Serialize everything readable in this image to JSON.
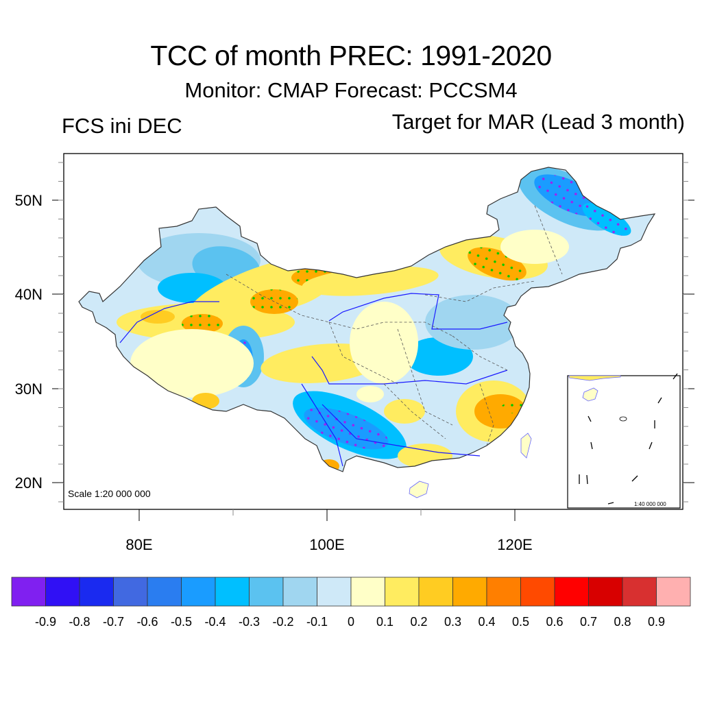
{
  "header": {
    "title": "TCC of month PREC: 1991-2020",
    "subtitle": "Monitor: CMAP   Forecast: PCCSM4",
    "left_label": "FCS ini DEC",
    "right_label": "Target for MAR (Lead 3 month)"
  },
  "map": {
    "region": "China",
    "lat_ticks": [
      "50N",
      "40N",
      "30N",
      "20N"
    ],
    "lon_ticks": [
      "80E",
      "100E",
      "120E"
    ],
    "scale_label": "Scale 1:20 000 000",
    "inset_scale_label": "1:40 000 000",
    "stipple_positive_color": "#00c800",
    "stipple_negative_color": "#a020f0",
    "boundary_color": "#333333",
    "river_color": "#1a1aff"
  },
  "chart_data": {
    "type": "heatmap",
    "title": "TCC of month PREC: 1991-2020",
    "subtitle": "Monitor: CMAP   Forecast: PCCSM4",
    "annotations": [
      "FCS ini DEC",
      "Target for MAR (Lead 3 month)",
      "Scale 1:20 000 000",
      "1:40 000 000"
    ],
    "xlabel": "",
    "ylabel": "",
    "x_ticks": [
      "80E",
      "100E",
      "120E"
    ],
    "y_ticks": [
      "50N",
      "40N",
      "30N",
      "20N"
    ],
    "xlim": [
      72,
      138
    ],
    "ylim": [
      17,
      55
    ],
    "colorbar": {
      "labels": [
        "-0.9",
        "-0.8",
        "-0.7",
        "-0.6",
        "-0.5",
        "-0.4",
        "-0.3",
        "-0.2",
        "-0.1",
        "0",
        "0.1",
        "0.2",
        "0.3",
        "0.4",
        "0.5",
        "0.6",
        "0.7",
        "0.8",
        "0.9"
      ],
      "colors": [
        "#8020f0",
        "#3010f5",
        "#1a2af0",
        "#4169e1",
        "#2a7df0",
        "#1a9cff",
        "#00bfff",
        "#5bc2f0",
        "#a0d6f0",
        "#cfe9f8",
        "#ffffc8",
        "#ffec60",
        "#ffcc22",
        "#ffaa00",
        "#ff7f00",
        "#ff4a00",
        "#ff0000",
        "#d80000",
        "#d83030",
        "#ffb0b0"
      ],
      "placement": "bottom"
    },
    "regions": [
      {
        "name": "Northeast (Heilongjiang north)",
        "value": -0.4,
        "significant": true
      },
      {
        "name": "Inner Mongolia east / Liaoning west",
        "value": 0.35,
        "significant": true
      },
      {
        "name": "Inner Mongolia central (~100E,42N)",
        "value": 0.35,
        "significant": true
      },
      {
        "name": "Hexi corridor (~95E,39N)",
        "value": 0.35,
        "significant": true
      },
      {
        "name": "South Xinjiang (~87E,37N)",
        "value": 0.35,
        "significant": true
      },
      {
        "name": "North Xinjiang (~85E,42N)",
        "value": -0.4,
        "significant": true
      },
      {
        "name": "Tibet central (~91E,32N)",
        "value": -0.4,
        "significant": true
      },
      {
        "name": "Yunnan / Guangxi",
        "value": -0.4,
        "significant": true
      },
      {
        "name": "Zhejiang",
        "value": 0.35,
        "significant": true
      },
      {
        "name": "North China Plain",
        "value": -0.2,
        "significant": false
      },
      {
        "name": "Sichuan basin / Shaanxi",
        "value": 0.15,
        "significant": false
      },
      {
        "name": "Hainan",
        "value": 0.05,
        "significant": false
      }
    ]
  }
}
